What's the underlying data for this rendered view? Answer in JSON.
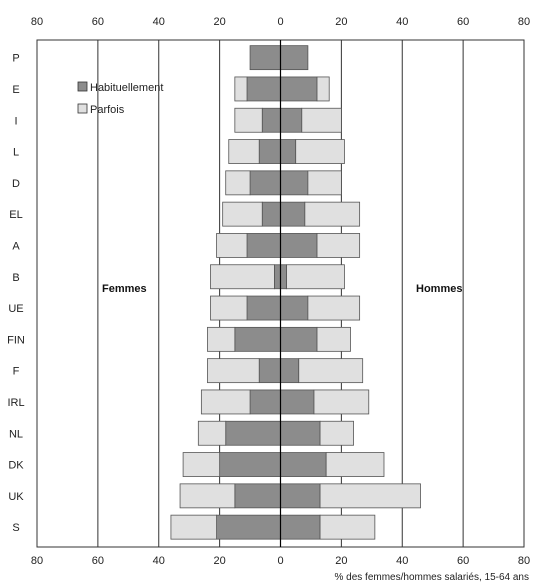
{
  "chart_data": {
    "type": "bar",
    "orientation": "horizontal-diverging",
    "categories": [
      "P",
      "E",
      "I",
      "L",
      "D",
      "EL",
      "A",
      "B",
      "UE",
      "FIN",
      "F",
      "IRL",
      "NL",
      "DK",
      "UK",
      "S"
    ],
    "series": [
      {
        "name": "Habituellement",
        "color": "#8c8c8c",
        "women": [
          10,
          11,
          6,
          7,
          10,
          6,
          11,
          2,
          11,
          15,
          7,
          10,
          18,
          20,
          15,
          21
        ],
        "men": [
          9,
          12,
          7,
          5,
          9,
          8,
          12,
          2,
          9,
          12,
          6,
          11,
          13,
          15,
          13,
          13
        ]
      },
      {
        "name": "Parfois",
        "color": "#e0e0e0",
        "women": [
          0,
          4,
          9,
          10,
          8,
          13,
          10,
          21,
          12,
          9,
          17,
          16,
          9,
          12,
          18,
          15
        ],
        "men": [
          0,
          4,
          13,
          16,
          11,
          18,
          14,
          19,
          17,
          11,
          21,
          18,
          11,
          19,
          33,
          18
        ]
      }
    ],
    "xlim": [
      -80,
      80
    ],
    "xticks": [
      "80",
      "60",
      "40",
      "20",
      "0",
      "20",
      "40",
      "60",
      "80"
    ],
    "left_label": "Femmes",
    "right_label": "Hommes",
    "xlabel": "% des femmes/hommes salariés, 15-64 ans",
    "legend": "top-left",
    "grid": true
  }
}
